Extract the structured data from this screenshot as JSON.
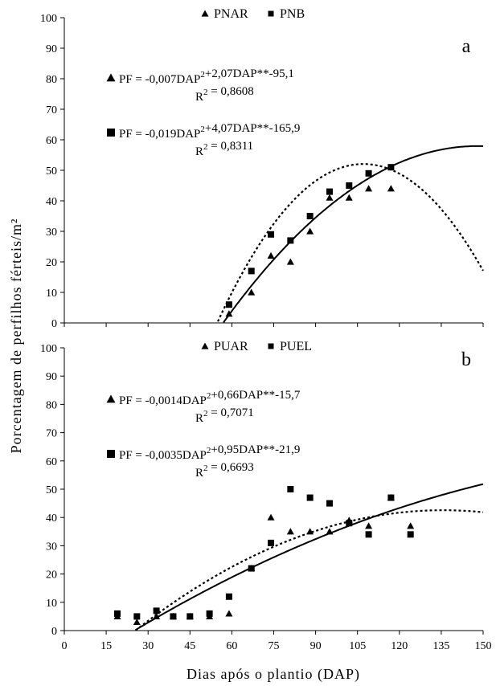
{
  "ylabel": "Porcentagem de perfilhos férteis/m²",
  "xlabel": "Dias após o plantio (DAP)",
  "x_ticks": [
    0,
    15,
    30,
    45,
    60,
    75,
    90,
    105,
    120,
    135,
    150
  ],
  "y_ticks": [
    0,
    10,
    20,
    30,
    40,
    50,
    60,
    70,
    80,
    90,
    100
  ],
  "chart_data": [
    {
      "type": "scatter",
      "panel": "a",
      "xlim": [
        0,
        150
      ],
      "ylim": [
        0,
        100
      ],
      "legend_position": "top-center",
      "series": [
        {
          "name": "PNAR",
          "marker": "triangle",
          "line": "solid",
          "x": [
            59,
            67,
            74,
            81,
            88,
            95,
            102,
            109,
            117
          ],
          "y": [
            3,
            10,
            22,
            20,
            30,
            41,
            41,
            44,
            44
          ],
          "equation": "PF = -0,007DAP²+2,07DAP**-95,1",
          "r2": "R² = 0,8608",
          "fit": {
            "a": -0.007,
            "b": 2.07,
            "c": -95.1
          }
        },
        {
          "name": "PNB",
          "marker": "square",
          "line": "dotted",
          "x": [
            59,
            67,
            74,
            81,
            88,
            95,
            102,
            109,
            117
          ],
          "y": [
            6,
            17,
            29,
            27,
            35,
            43,
            45,
            49,
            51
          ],
          "equation": "PF = -0,019DAP²+4,07DAP**-165,9",
          "r2": "R² = 0,8311",
          "fit": {
            "a": -0.019,
            "b": 4.07,
            "c": -165.9
          }
        }
      ]
    },
    {
      "type": "scatter",
      "panel": "b",
      "xlim": [
        0,
        150
      ],
      "ylim": [
        0,
        100
      ],
      "legend_position": "top-center",
      "series": [
        {
          "name": "PUAR",
          "marker": "triangle",
          "line": "solid",
          "x": [
            19,
            26,
            33,
            39,
            45,
            52,
            59,
            67,
            74,
            81,
            88,
            95,
            102,
            109,
            117,
            124
          ],
          "y": [
            5,
            3,
            5,
            5,
            5,
            5,
            6,
            22,
            40,
            35,
            35,
            35,
            39,
            37,
            47,
            37
          ],
          "equation": "PF = -0,0014DAP²+0,66DAP**-15,7",
          "r2": "R² = 0,7071",
          "fit": {
            "a": -0.0014,
            "b": 0.66,
            "c": -15.7
          }
        },
        {
          "name": "PUEL",
          "marker": "square",
          "line": "dotted",
          "x": [
            19,
            26,
            33,
            39,
            45,
            52,
            59,
            67,
            74,
            81,
            88,
            95,
            102,
            109,
            117,
            124
          ],
          "y": [
            6,
            5,
            7,
            5,
            5,
            6,
            12,
            22,
            31,
            50,
            47,
            45,
            38,
            34,
            47,
            34
          ],
          "equation": "PF = -0,0035DAP²+0,95DAP**-21,9",
          "r2": "R² = 0,6693",
          "fit": {
            "a": -0.0035,
            "b": 0.95,
            "c": -21.9
          }
        }
      ]
    }
  ]
}
